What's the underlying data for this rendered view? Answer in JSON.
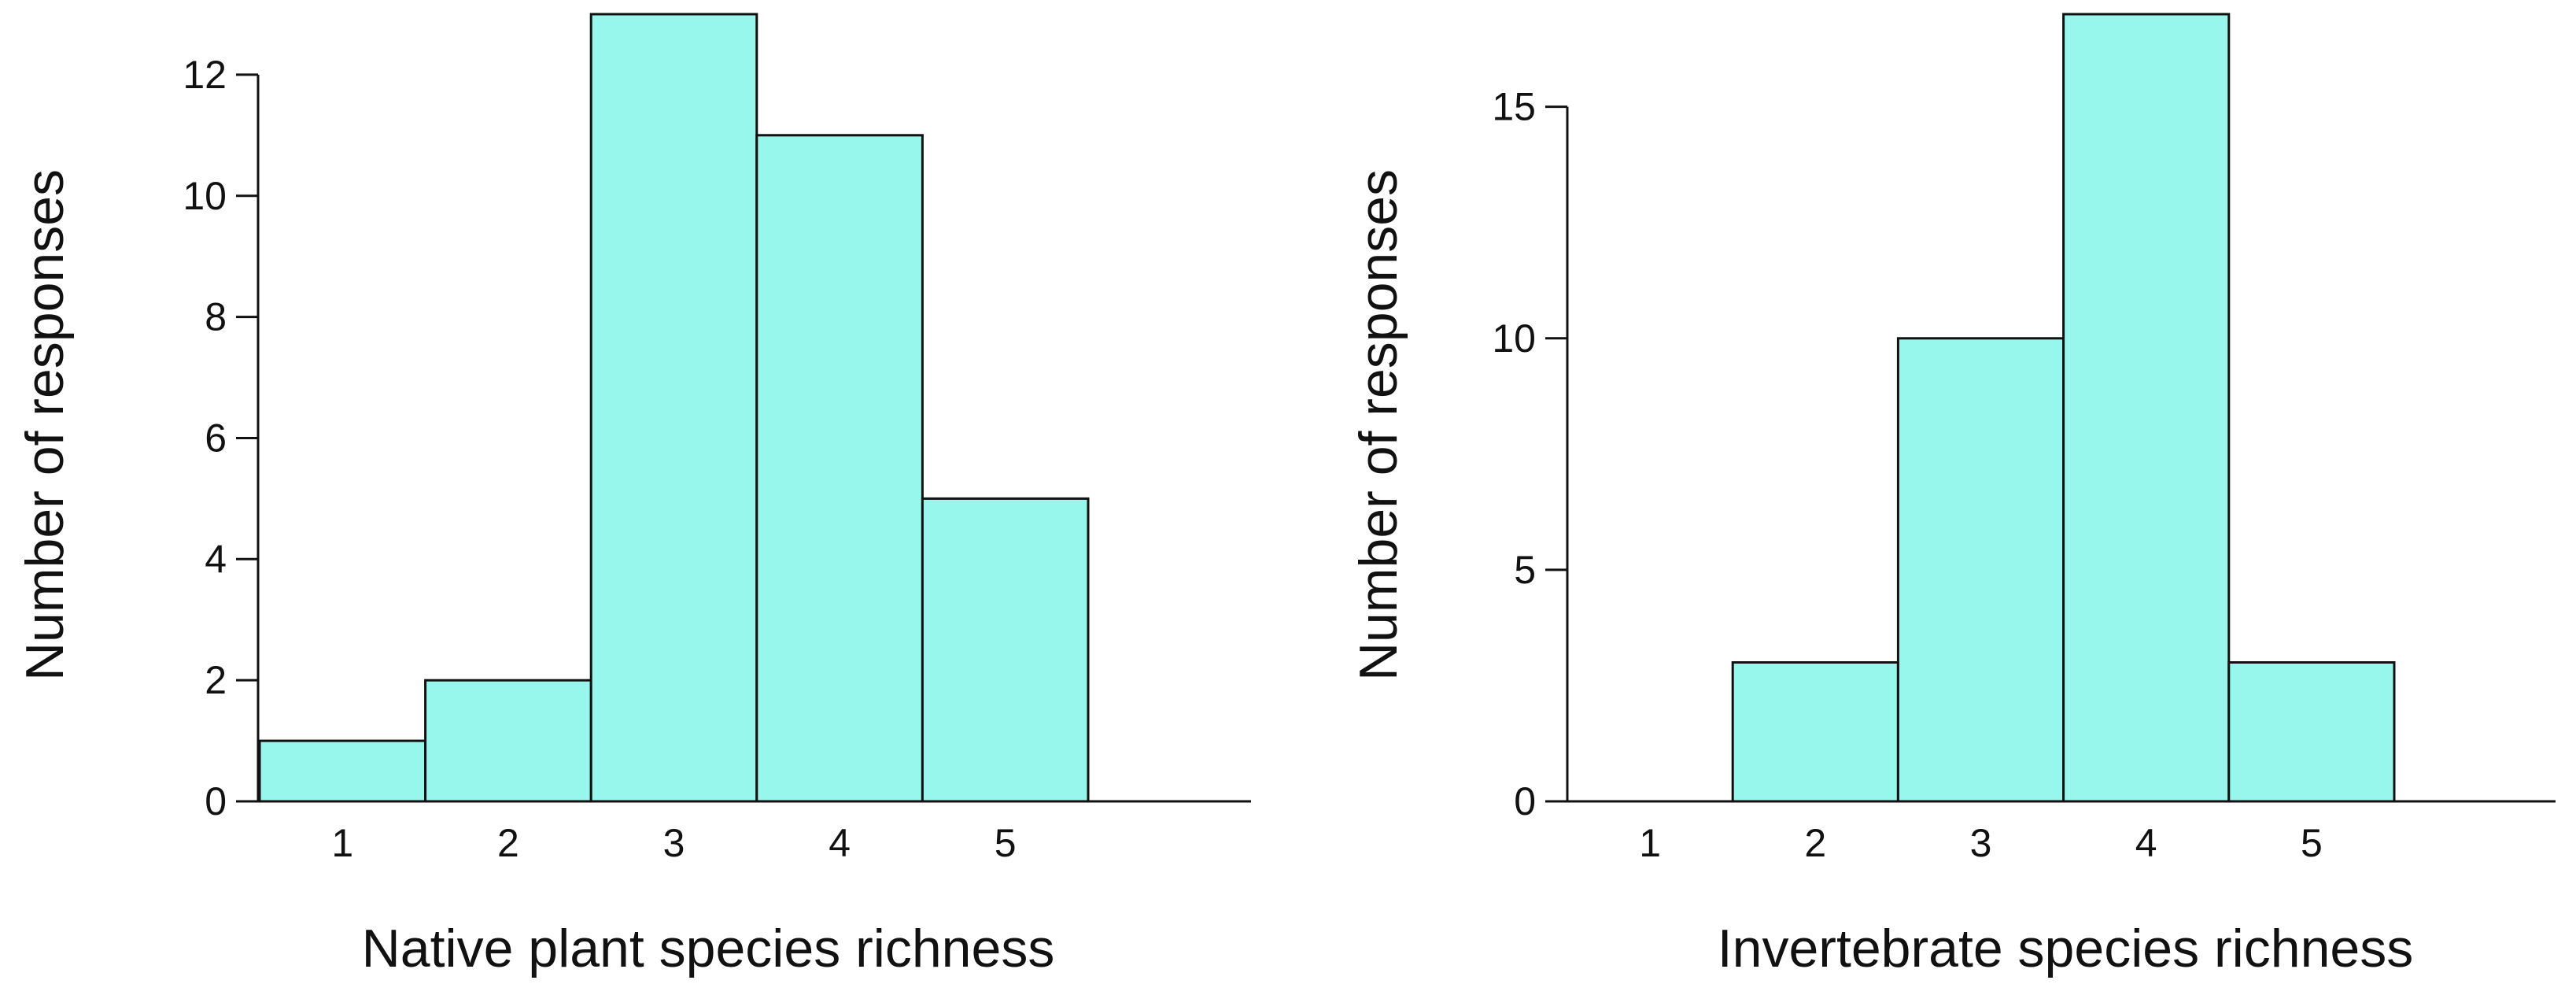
{
  "chart_data": [
    {
      "type": "bar",
      "categories": [
        "1",
        "2",
        "3",
        "4",
        "5"
      ],
      "values": [
        1,
        2,
        13,
        11,
        5
      ],
      "xlabel": "Native plant species richness",
      "ylabel": "Number of responses",
      "ylim": [
        0,
        13
      ],
      "yticks": [
        0,
        2,
        4,
        6,
        8,
        10,
        12
      ],
      "bar_color": "#98f7ec",
      "edge_color": "#111111",
      "grid": false,
      "legend": "none"
    },
    {
      "type": "bar",
      "categories": [
        "1",
        "2",
        "3",
        "4",
        "5"
      ],
      "values": [
        0,
        3,
        10,
        17,
        3
      ],
      "xlabel": "Invertebrate species richness",
      "ylabel": "Number of responses",
      "ylim": [
        0,
        17
      ],
      "yticks": [
        0,
        5,
        10,
        15
      ],
      "bar_color": "#98f7ec",
      "edge_color": "#111111",
      "grid": false,
      "legend": "none"
    }
  ]
}
